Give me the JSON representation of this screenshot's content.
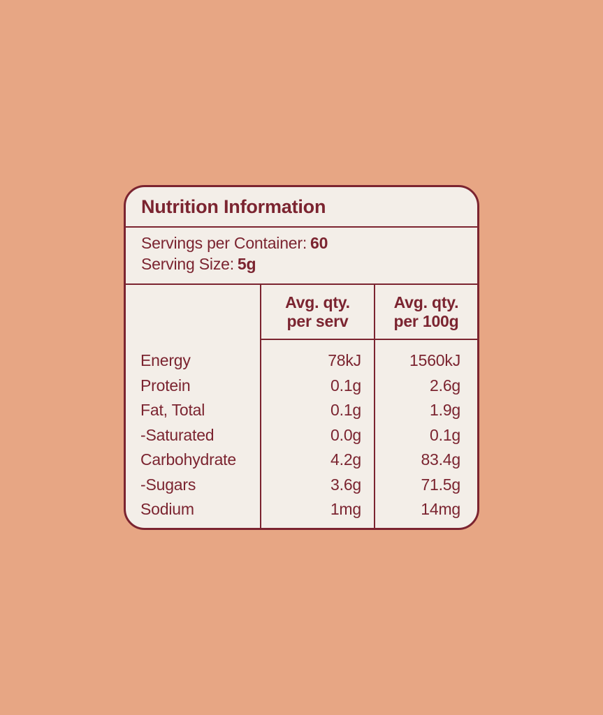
{
  "page": {
    "background_color": "#E7A684"
  },
  "label": {
    "title": "Nutrition Information",
    "servings": {
      "per_container_label": "Servings per Container:",
      "per_container_value": "60",
      "serving_size_label": "Serving Size:",
      "serving_size_value": "5g"
    },
    "table": {
      "col_per_serv": {
        "line1": "Avg. qty.",
        "line2": "per serv"
      },
      "col_per_100g": {
        "line1": "Avg. qty.",
        "line2": "per 100g"
      },
      "rows": [
        {
          "nutrient": "Energy",
          "per_serv": "78kJ",
          "per_100g": "1560kJ"
        },
        {
          "nutrient": "Protein",
          "per_serv": "0.1g",
          "per_100g": "2.6g"
        },
        {
          "nutrient": "Fat, Total",
          "per_serv": "0.1g",
          "per_100g": "1.9g"
        },
        {
          "nutrient": "-Saturated",
          "per_serv": "0.0g",
          "per_100g": "0.1g"
        },
        {
          "nutrient": "Carbohydrate",
          "per_serv": "4.2g",
          "per_100g": "83.4g"
        },
        {
          "nutrient": "-Sugars",
          "per_serv": "3.6g",
          "per_100g": "71.5g"
        },
        {
          "nutrient": "Sodium",
          "per_serv": "1mg",
          "per_100g": "14mg"
        }
      ]
    },
    "colors": {
      "card_background": "#F3EEE8",
      "accent_maroon": "#7B2430",
      "page_background": "#E7A684"
    }
  }
}
